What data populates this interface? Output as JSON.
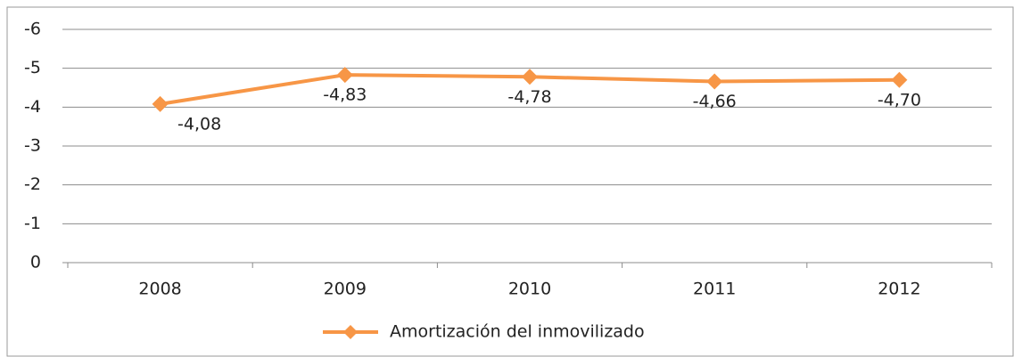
{
  "chart_data": {
    "type": "line",
    "categories": [
      "2008",
      "2009",
      "2010",
      "2011",
      "2012"
    ],
    "series": [
      {
        "name": "Amortización del inmovilizado",
        "color": "#f79646",
        "values": [
          -4.08,
          -4.83,
          -4.78,
          -4.66,
          -4.7
        ],
        "value_labels": [
          "-4,08",
          "-4,83",
          "-4,78",
          "-4,66",
          "-4,70"
        ]
      }
    ],
    "ylim": [
      0,
      -6
    ],
    "yticks": [
      0,
      -1,
      -2,
      -3,
      -4,
      -5,
      -6
    ],
    "grid": true,
    "legend": "bottom"
  }
}
